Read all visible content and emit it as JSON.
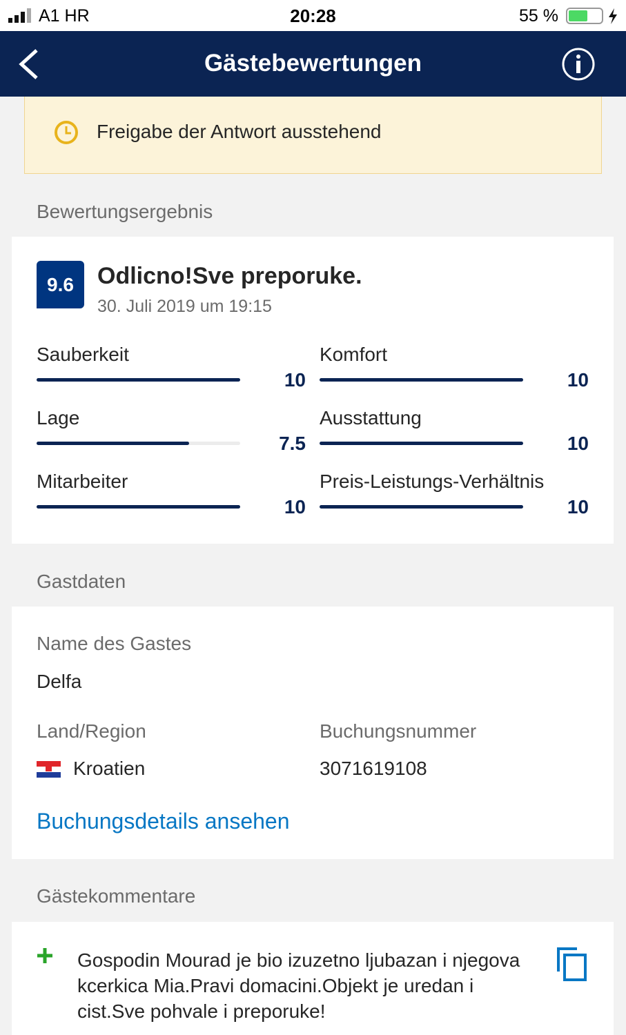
{
  "status_bar": {
    "carrier": "A1 HR",
    "time": "20:28",
    "battery": "55 %"
  },
  "nav": {
    "title": "Gästebewertungen"
  },
  "banner": {
    "text": "Freigabe der Antwort ausstehend"
  },
  "rating_section": {
    "label": "Bewertungsergebnis",
    "score": "9.6",
    "title": "Odlicno!Sve preporuke.",
    "date": "30. Juli 2019 um 19:15",
    "ratings": [
      {
        "name": "Sauberkeit",
        "value": 10
      },
      {
        "name": "Komfort",
        "value": 10
      },
      {
        "name": "Lage",
        "value": 7.5
      },
      {
        "name": "Ausstattung",
        "value": 10
      },
      {
        "name": "Mitarbeiter",
        "value": 10
      },
      {
        "name": "Preis-Leistungs-Verhältnis",
        "value": 10
      }
    ]
  },
  "guest_section": {
    "label": "Gastdaten",
    "name_label": "Name des Gastes",
    "name": "Delfa",
    "country_label": "Land/Region",
    "country": "Kroatien",
    "booking_label": "Buchungsnummer",
    "booking_number": "3071619108",
    "link": "Buchungsdetails ansehen"
  },
  "comments_section": {
    "label": "Gästekommentare",
    "comment": "Gospodin Mourad je bio izuzetno ljubazan i njegova kcerkica Mia.Pravi domacini.Objekt je uredan i cist.Sve pohvale i preporuke!"
  }
}
